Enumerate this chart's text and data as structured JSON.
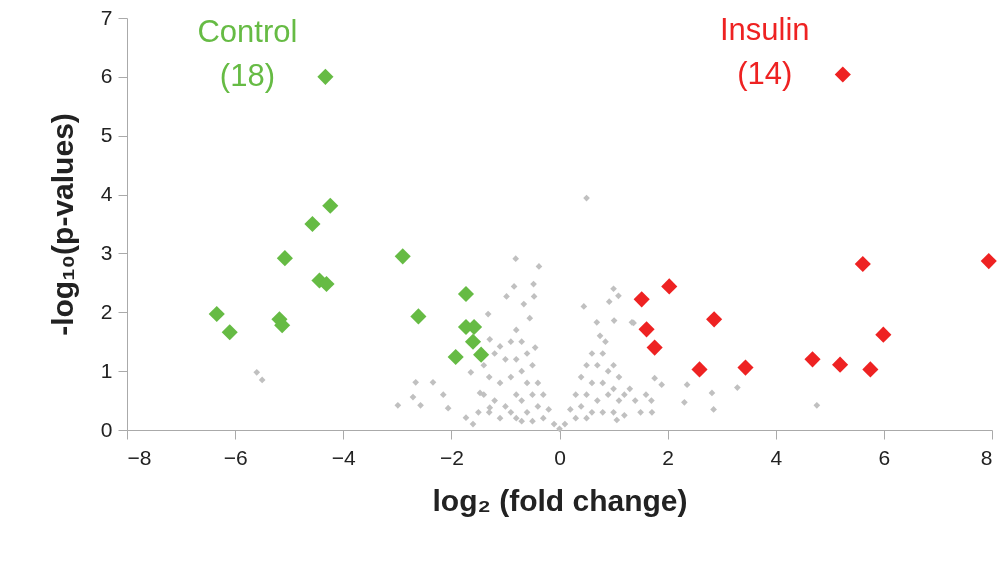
{
  "chart_data": {
    "type": "scatter",
    "xlabel": "log₂ (fold change)",
    "ylabel": "-log₁₀(p-values)",
    "xlim": [
      -8,
      8
    ],
    "xticks": [
      -8,
      -6,
      -4,
      -2,
      0,
      2,
      4,
      6,
      8
    ],
    "ylim": [
      0,
      7
    ],
    "yticks": [
      0,
      1,
      2,
      3,
      4,
      5,
      6,
      7
    ],
    "grid": false,
    "marker": "diamond",
    "series": [
      {
        "color": "#c0c0c0",
        "x": [
          0.5,
          -0.81,
          -0.38,
          -0.84,
          -0.48,
          -0.98,
          -0.47,
          -1.32,
          -0.66,
          1.0,
          1.09,
          0.45,
          0.92,
          0.69,
          1.01,
          1.34,
          -2.66,
          -2.34,
          -2.99,
          -2.71,
          -2.57,
          -2.15,
          -2.06,
          -1.73,
          -1.64,
          -1.29,
          -1.47,
          -1.1,
          -1.29,
          1.89,
          1.76,
          1.71,
          2.31,
          2.36,
          1.37,
          1.06,
          4.76,
          3.29,
          2.85,
          2.82,
          -5.6,
          -5.5,
          -1.5,
          -1.4,
          -1.3,
          -1.2,
          -1.1,
          -1.0,
          -1.0,
          -0.9,
          -0.9,
          -0.9,
          -0.8,
          -0.8,
          -0.8,
          -0.8,
          -0.7,
          -0.7,
          -0.7,
          -0.7,
          -0.6,
          -0.6,
          -0.6,
          -0.5,
          -0.5,
          -0.5,
          -0.4,
          -0.4,
          -0.3,
          -0.3,
          -0.2,
          -0.1,
          0.0,
          -1.6,
          -1.3,
          -1.1,
          -1.4,
          -1.2,
          -0.55,
          -0.45,
          0.1,
          0.2,
          0.3,
          0.3,
          0.4,
          0.4,
          0.5,
          0.5,
          0.5,
          0.6,
          0.6,
          0.6,
          0.7,
          0.7,
          0.8,
          0.8,
          0.8,
          0.9,
          0.9,
          1.0,
          1.0,
          1.0,
          1.1,
          1.1,
          1.2,
          1.2,
          1.3,
          1.4,
          1.5,
          1.6,
          1.7,
          0.75,
          0.85
        ],
        "values": [
          3.94,
          2.91,
          2.78,
          2.44,
          2.48,
          2.27,
          2.27,
          1.97,
          2.14,
          2.4,
          2.28,
          2.1,
          2.18,
          1.83,
          1.86,
          1.83,
          0.81,
          0.81,
          0.42,
          0.56,
          0.42,
          0.6,
          0.37,
          0.21,
          0.98,
          0.38,
          0.63,
          1.42,
          1.54,
          0.77,
          0.88,
          0.3,
          0.47,
          0.77,
          1.82,
          0.17,
          0.42,
          0.72,
          0.35,
          0.63,
          0.98,
          0.85,
          0.3,
          0.6,
          0.9,
          0.5,
          0.8,
          1.2,
          0.4,
          1.5,
          0.9,
          0.3,
          1.7,
          1.2,
          0.6,
          0.2,
          1.5,
          1.0,
          0.5,
          0.15,
          1.3,
          0.8,
          0.3,
          1.1,
          0.6,
          0.15,
          0.8,
          0.4,
          0.6,
          0.2,
          0.35,
          0.1,
          0.02,
          0.1,
          0.3,
          0.2,
          1.1,
          1.3,
          1.9,
          1.4,
          0.1,
          0.35,
          0.6,
          0.2,
          0.9,
          0.4,
          1.1,
          0.6,
          0.2,
          1.3,
          0.8,
          0.3,
          1.1,
          0.5,
          1.3,
          0.8,
          0.3,
          1.0,
          0.6,
          1.1,
          0.7,
          0.3,
          0.9,
          0.5,
          0.6,
          0.25,
          0.7,
          0.5,
          0.3,
          0.6,
          0.5,
          1.6,
          1.5
        ]
      },
      {
        "name": "Control\n(18)",
        "color": "#66bb44",
        "x": [
          -4.33,
          -4.24,
          -4.57,
          -5.08,
          -2.9,
          -4.44,
          -4.31,
          -6.34,
          -6.1,
          -5.18,
          -5.13,
          -1.73,
          -2.61,
          -1.73,
          -1.58,
          -1.6,
          -1.92,
          -1.45
        ],
        "values": [
          6.0,
          3.81,
          3.5,
          2.92,
          2.95,
          2.54,
          2.48,
          1.97,
          1.66,
          1.88,
          1.78,
          2.31,
          1.93,
          1.75,
          1.75,
          1.5,
          1.24,
          1.28
        ]
      },
      {
        "name": "Insulin\n(14)",
        "color": "#ee2222",
        "x": [
          5.24,
          5.61,
          7.94,
          2.03,
          1.52,
          2.86,
          1.61,
          1.76,
          5.99,
          4.68,
          5.19,
          5.75,
          2.59,
          3.44
        ],
        "values": [
          6.04,
          2.82,
          2.87,
          2.44,
          2.22,
          1.88,
          1.71,
          1.4,
          1.62,
          1.2,
          1.11,
          1.03,
          1.03,
          1.06
        ]
      }
    ]
  }
}
